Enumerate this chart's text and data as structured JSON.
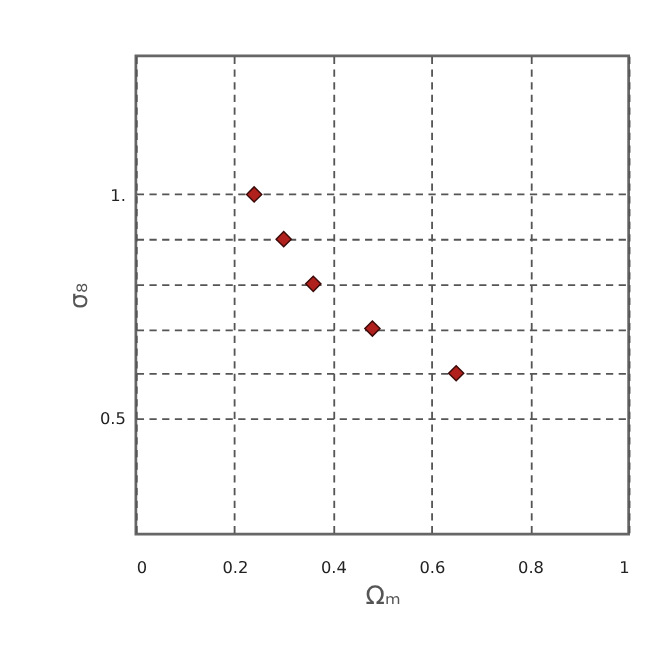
{
  "chart_data": {
    "type": "scatter",
    "xlabel": "Ωₘ",
    "ylabel": "σ₈",
    "x": [
      0.24,
      0.3,
      0.36,
      0.48,
      0.65
    ],
    "series": [
      {
        "color": "#b0201c",
        "values": [
          1.0,
          0.9,
          0.8,
          0.7,
          0.6
        ]
      }
    ],
    "xlim": [
      0,
      1
    ],
    "ylim": [
      0.24,
      1.31
    ],
    "xticks": [
      0,
      0.2,
      0.4,
      0.6,
      0.8,
      1
    ],
    "yticks": [
      {
        "value": 0.5,
        "label": "0.5"
      },
      {
        "value": 0.6,
        "label": null
      },
      {
        "value": 0.7,
        "label": null
      },
      {
        "value": 0.8,
        "label": null
      },
      {
        "value": 0.9,
        "label": null
      },
      {
        "value": 1.0,
        "label": "1."
      }
    ],
    "grid": true,
    "marker": "diamond"
  }
}
